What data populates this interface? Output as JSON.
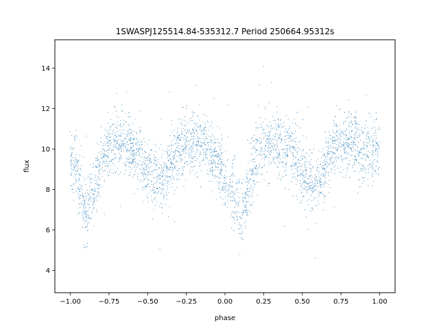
{
  "chart_data": {
    "type": "scatter",
    "title": "1SWASPJ125514.84-535312.7 Period 250664.95312s",
    "xlabel": "phase",
    "ylabel": "flux",
    "xlim": [
      -1.1,
      1.1
    ],
    "ylim": [
      2.9,
      15.4
    ],
    "xticks": [
      -1.0,
      -0.75,
      -0.5,
      -0.25,
      0.0,
      0.25,
      0.5,
      0.75,
      1.0
    ],
    "xtick_labels": [
      "−1.00",
      "−0.75",
      "−0.50",
      "−0.25",
      "0.00",
      "0.25",
      "0.50",
      "0.75",
      "1.00"
    ],
    "yticks": [
      4,
      6,
      8,
      10,
      12,
      14
    ],
    "ytick_labels": [
      "4",
      "6",
      "8",
      "10",
      "12",
      "14"
    ],
    "grid": false,
    "point_color": "#1f77b4",
    "profile": {
      "description_of_points": "dense phase-folded light curve; points repeat every 1.0 in phase",
      "phase": [
        -1.0,
        -0.95,
        -0.9,
        -0.85,
        -0.8,
        -0.75,
        -0.7,
        -0.65,
        -0.6,
        -0.55,
        -0.5,
        -0.45,
        -0.4,
        -0.35,
        -0.3,
        -0.25,
        -0.2,
        -0.15,
        -0.1,
        -0.05,
        0.0,
        0.05,
        0.1,
        0.15,
        0.2,
        0.25,
        0.3,
        0.35,
        0.4,
        0.45,
        0.5,
        0.55,
        0.6,
        0.65,
        0.7,
        0.75,
        0.8,
        0.85,
        0.9,
        0.95,
        1.0
      ],
      "mean_flux": [
        9.6,
        8.6,
        6.8,
        7.8,
        9.4,
        10.2,
        10.4,
        10.3,
        10.0,
        9.7,
        8.9,
        8.4,
        8.4,
        9.2,
        10.0,
        10.3,
        10.4,
        10.2,
        9.9,
        9.5,
        8.6,
        8.0,
        6.6,
        8.1,
        9.6,
        10.2,
        10.4,
        10.3,
        10.0,
        9.6,
        8.9,
        8.4,
        8.4,
        9.2,
        10.0,
        10.3,
        10.4,
        10.2,
        9.9,
        9.8,
        9.9
      ],
      "scatter_sigma": 0.75
    }
  }
}
